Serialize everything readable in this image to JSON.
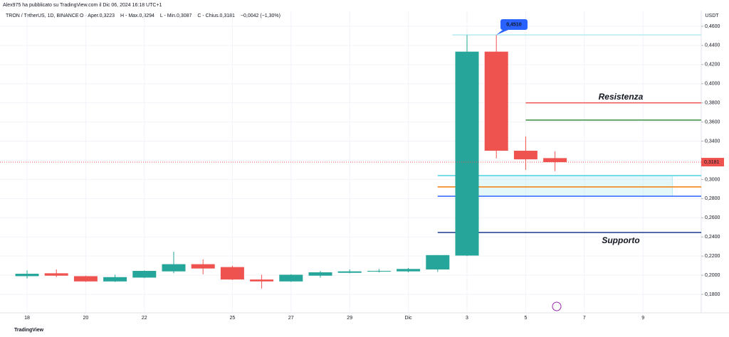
{
  "chart_data": {
    "type": "candlestick",
    "header": "Alex975 ha pubblicato su TradingView.com il Dic 06, 2024 16:18 UTC+1",
    "symbol": "TRON / TetherUS, 1D, BINANCE",
    "legend_items": [
      "O - Aper.0,3223",
      "H - Max.0,3294",
      "L - Min.0,3087",
      "C - Chius.0,3181",
      "−0,0042 (−1,30%)"
    ],
    "unit": "USDT",
    "brand": "TradingView",
    "categories": [
      "18",
      null,
      "20",
      null,
      "22",
      null,
      null,
      "25",
      null,
      "27",
      null,
      "29",
      null,
      "Dic",
      null,
      "3",
      null,
      "5",
      null,
      "7",
      null,
      "9",
      null
    ],
    "open": [
      0.199,
      0.202,
      0.199,
      0.1935,
      0.1975,
      0.204,
      0.2115,
      0.2085,
      0.1955,
      0.1935,
      0.1995,
      0.2025,
      0.204,
      0.204,
      0.206,
      0.2205,
      0.4335,
      0.33,
      0.3223,
      null,
      null,
      null,
      null
    ],
    "high": [
      0.205,
      0.206,
      0.1995,
      0.2005,
      0.205,
      0.2245,
      0.2165,
      0.21,
      0.2005,
      0.201,
      0.2045,
      0.206,
      0.2065,
      0.2075,
      0.221,
      0.451,
      0.451,
      0.345,
      0.3294,
      null,
      null,
      null,
      null
    ],
    "low": [
      0.1965,
      0.198,
      0.193,
      0.193,
      0.197,
      0.202,
      0.201,
      0.195,
      0.186,
      0.193,
      0.1975,
      0.202,
      0.203,
      0.203,
      0.2035,
      0.22,
      0.322,
      0.31,
      0.3087,
      null,
      null,
      null,
      null
    ],
    "close": [
      0.2015,
      0.1995,
      0.1935,
      0.198,
      0.2045,
      0.2115,
      0.207,
      0.1955,
      0.1935,
      0.2005,
      0.203,
      0.204,
      0.2045,
      0.2065,
      0.221,
      0.4335,
      0.33,
      0.321,
      0.3181,
      null,
      null,
      null,
      null
    ],
    "up_color": "#26a69a",
    "down_color": "#ef5350",
    "ylim": [
      0.1607,
      0.4763
    ],
    "yticks": [
      {
        "value": 0.18,
        "label": "0,1800"
      },
      {
        "value": 0.2,
        "label": "0,2000"
      },
      {
        "value": 0.22,
        "label": "0,2200"
      },
      {
        "value": 0.24,
        "label": "0,2400"
      },
      {
        "value": 0.26,
        "label": "0,2600"
      },
      {
        "value": 0.28,
        "label": "0,2800"
      },
      {
        "value": 0.3,
        "label": "0,3000"
      },
      {
        "value": 0.32,
        "label": "0,3200"
      },
      {
        "value": 0.34,
        "label": "0,3400"
      },
      {
        "value": 0.36,
        "label": "0,3600"
      },
      {
        "value": 0.38,
        "label": "0,3800"
      },
      {
        "value": 0.4,
        "label": "0,4000"
      },
      {
        "value": 0.42,
        "label": "0,4200"
      },
      {
        "value": 0.44,
        "label": "0,4400"
      },
      {
        "value": 0.46,
        "label": "0,4600"
      }
    ],
    "grid": true,
    "price_line": {
      "value": 0.3181,
      "label": "0,3181",
      "color": "#ef5350"
    },
    "high_marker": {
      "value": 0.451,
      "label": "0,4510",
      "color": "#2962ff"
    },
    "hlines": [
      {
        "value": 0.451,
        "color": "#b2ebf2"
      },
      {
        "value": 0.38,
        "color": "#ef5350",
        "label": "Resistenza"
      },
      {
        "value": 0.362,
        "color": "#388e3c"
      },
      {
        "value": 0.304,
        "color": "#4dd0e1"
      },
      {
        "value": 0.2922,
        "color": "#f57c00"
      },
      {
        "value": 0.2825,
        "color": "#2962ff"
      },
      {
        "value": 0.2446,
        "color": "#1a3a8f",
        "label": "Supporto"
      }
    ],
    "zone": {
      "top": 0.304,
      "bottom": 0.2825,
      "color": "#b2ebf2"
    }
  }
}
